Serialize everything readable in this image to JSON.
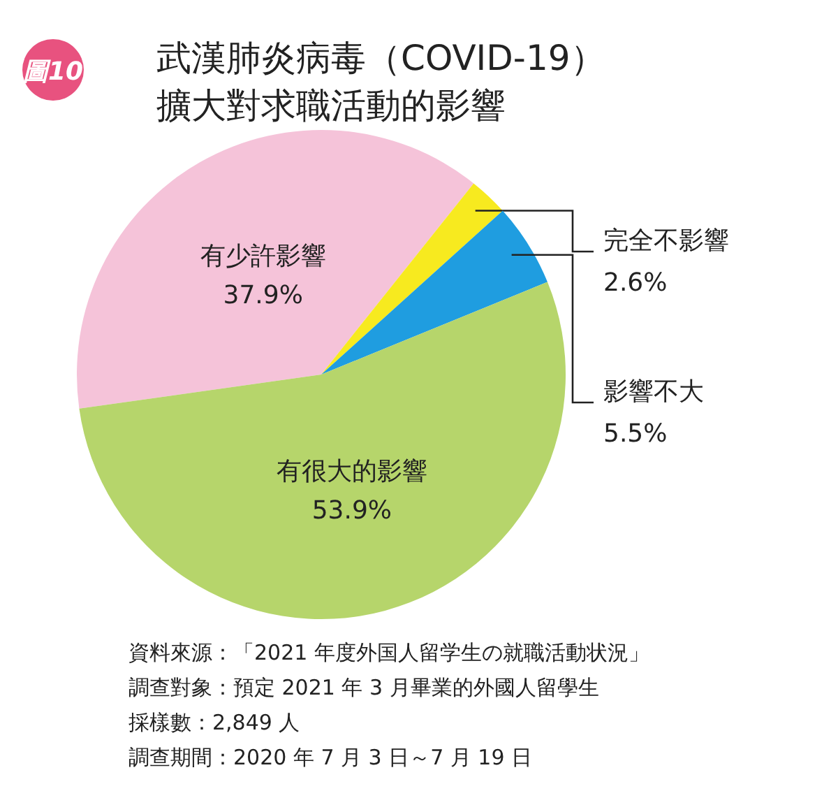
{
  "chart_data": {
    "type": "pie",
    "title": "武漢肺炎病毒（COVID-19）擴大對求職活動的影響",
    "categories": [
      "有少許影響",
      "完全不影響",
      "影響不大",
      "有很大的影響"
    ],
    "values": [
      37.9,
      2.6,
      5.5,
      53.9
    ],
    "value_labels": [
      "37.9%",
      "2.6%",
      "5.5%",
      "53.9%"
    ],
    "colors": [
      "#f5c3d9",
      "#f7ea1f",
      "#1f9de0",
      "#b6d56b"
    ],
    "annotations": [
      "圖10",
      "資料來源：「2021 年度外国人留学生の就職活動状況」",
      "調查對象：預定 2021 年 3 月畢業的外國人留學生",
      "採樣數：2,849 人",
      "調查期間：2020 年 7 月 3 日～7 月 19 日"
    ]
  }
}
